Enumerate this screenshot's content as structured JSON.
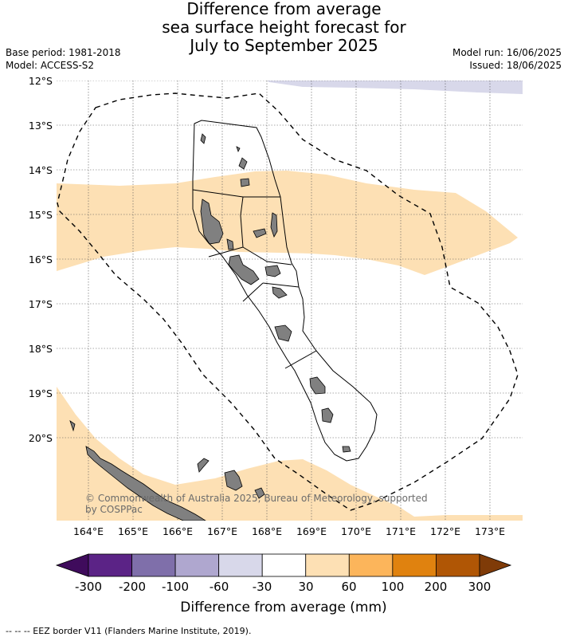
{
  "title": {
    "line1": "Difference from average",
    "line2": "sea surface height forecast for",
    "line3": "July to September 2025"
  },
  "meta": {
    "base_period": "Base period: 1981-2018",
    "model": "Model: ACCESS-S2",
    "model_run": "Model run: 16/06/2025",
    "issued": "Issued: 18/06/2025"
  },
  "map": {
    "lat_labels": [
      "12°S",
      "13°S",
      "14°S",
      "15°S",
      "16°S",
      "17°S",
      "18°S",
      "19°S",
      "20°S"
    ],
    "lon_labels": [
      "164°E",
      "165°E",
      "166°E",
      "167°E",
      "168°E",
      "169°E",
      "170°E",
      "171°E",
      "172°E",
      "173°E"
    ],
    "copyright_line1": "© Commonwealth of Australia 2025, Bureau of Meteorology, supported",
    "copyright_line2": "by COSPPac",
    "colors": {
      "land": "#808080",
      "band_30_60": "#fde0b4",
      "band_m60_m30": "#d8d8ea",
      "eez_line": "#000000"
    }
  },
  "colorbar": {
    "title": "Difference from average (mm)",
    "tick_labels": [
      "-300",
      "-200",
      "-100",
      "-60",
      "-30",
      "30",
      "60",
      "100",
      "200",
      "300"
    ],
    "colors": [
      "#3f0b5c",
      "#5b2386",
      "#7f6faa",
      "#afa7cf",
      "#d8d8ea",
      "#ffffff",
      "#fde0b4",
      "#fcb55b",
      "#e0820f",
      "#b05605",
      "#7f3b08"
    ]
  },
  "footer": {
    "legend": "--  --  -- EEZ border V11 (Flanders Marine Institute, 2019)."
  }
}
